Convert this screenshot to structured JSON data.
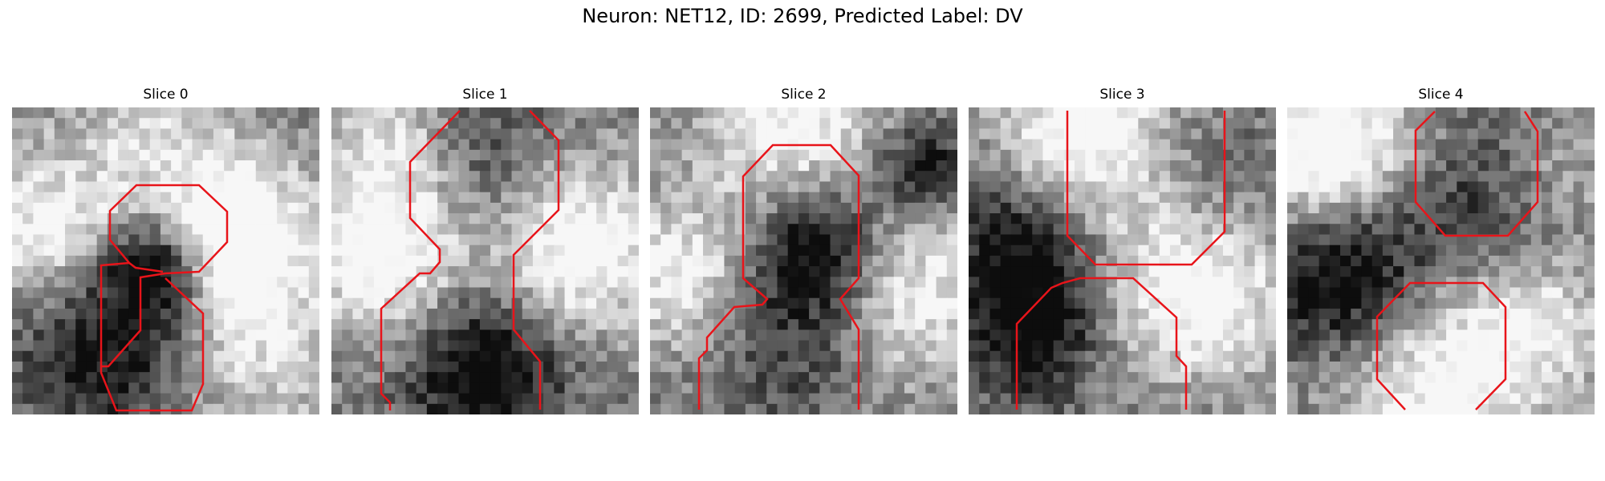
{
  "title": "Neuron: NET12, ID: 2699, Predicted Label: DV",
  "colors": {
    "contour": "#e8141a"
  },
  "panels": [
    {
      "label": "Slice 0",
      "seed": 11,
      "blobs": [
        [
          0.72,
          0.42,
          0.18,
          0.75
        ],
        [
          0.3,
          0.78,
          0.2,
          -0.5
        ],
        [
          0.8,
          0.8,
          0.22,
          0.35
        ],
        [
          0.45,
          0.1,
          0.2,
          0.3
        ],
        [
          0.1,
          0.4,
          0.18,
          0.5
        ],
        [
          0.48,
          0.52,
          0.12,
          -0.7
        ]
      ]
    },
    {
      "label": "Slice 1",
      "seed": 23,
      "blobs": [
        [
          0.18,
          0.45,
          0.2,
          0.7
        ],
        [
          0.8,
          0.45,
          0.2,
          0.65
        ],
        [
          0.5,
          0.85,
          0.18,
          -0.6
        ],
        [
          0.45,
          0.2,
          0.22,
          -0.3
        ],
        [
          0.2,
          0.1,
          0.15,
          0.4
        ]
      ]
    },
    {
      "label": "Slice 2",
      "seed": 37,
      "blobs": [
        [
          0.55,
          0.45,
          0.15,
          -0.6
        ],
        [
          0.1,
          0.55,
          0.18,
          0.5
        ],
        [
          0.85,
          0.6,
          0.2,
          0.5
        ],
        [
          0.45,
          0.05,
          0.2,
          0.55
        ],
        [
          0.45,
          0.75,
          0.2,
          -0.3
        ],
        [
          0.9,
          0.2,
          0.1,
          -0.5
        ]
      ]
    },
    {
      "label": "Slice 3",
      "seed": 41,
      "blobs": [
        [
          0.2,
          0.45,
          0.2,
          -0.6
        ],
        [
          0.45,
          0.2,
          0.25,
          0.5
        ],
        [
          0.75,
          0.6,
          0.2,
          0.6
        ],
        [
          0.2,
          0.75,
          0.15,
          -0.4
        ],
        [
          0.75,
          0.25,
          0.18,
          -0.3
        ],
        [
          0.3,
          0.1,
          0.15,
          0.3
        ]
      ]
    },
    {
      "label": "Slice 4",
      "seed": 53,
      "blobs": [
        [
          0.15,
          0.15,
          0.2,
          0.75
        ],
        [
          0.2,
          0.55,
          0.2,
          -0.7
        ],
        [
          0.5,
          0.85,
          0.25,
          0.6
        ],
        [
          0.6,
          0.3,
          0.2,
          -0.3
        ],
        [
          0.85,
          0.7,
          0.15,
          0.3
        ],
        [
          0.9,
          0.2,
          0.15,
          0.2
        ]
      ]
    }
  ]
}
